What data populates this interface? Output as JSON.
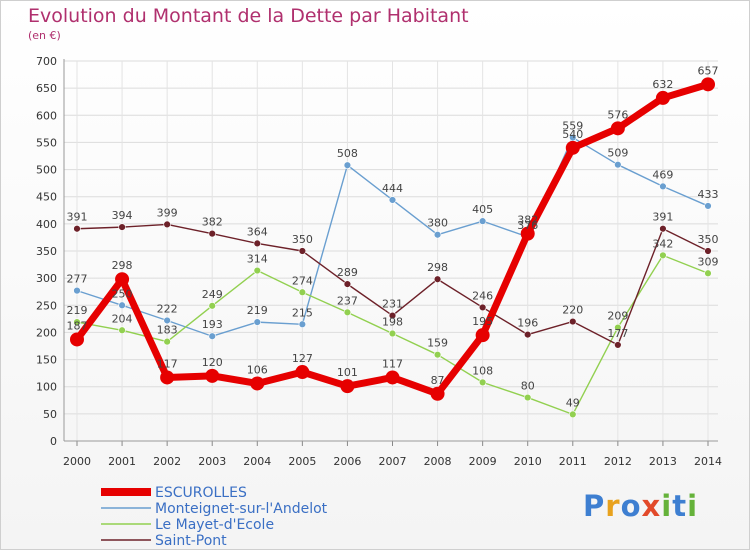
{
  "header": {
    "title": "Evolution du Montant de la Dette par Habitant",
    "subtitle": "(en €)"
  },
  "logo": {
    "letters": [
      "P",
      "r",
      "o",
      "x",
      "i",
      "t",
      "i"
    ],
    "colors": [
      "#3e7fd1",
      "#e8a21e",
      "#3e7fd1",
      "#e24a2a",
      "#65b23a",
      "#3e7fd1",
      "#65b23a"
    ]
  },
  "chart_data": {
    "type": "line",
    "title": "Evolution du Montant de la Dette par Habitant",
    "ylabel": "(en €)",
    "xlabel": "",
    "ylim": [
      0,
      700
    ],
    "yticks": [
      0,
      50,
      100,
      150,
      200,
      250,
      300,
      350,
      400,
      450,
      500,
      550,
      600,
      650,
      700
    ],
    "x": [
      "2000",
      "2001",
      "2002",
      "2003",
      "2004",
      "2005",
      "2006",
      "2007",
      "2008",
      "2009",
      "2010",
      "2011",
      "2012",
      "2013",
      "2014"
    ],
    "grid": true,
    "legend_position": "bottom-left",
    "series": [
      {
        "name": "ESCUROLLES",
        "color": "#e60000",
        "values": [
          187,
          298,
          117,
          120,
          106,
          127,
          101,
          117,
          87,
          195,
          382,
          540,
          576,
          632,
          657
        ]
      },
      {
        "name": "Monteignet-sur-l'Andelot",
        "color": "#6a9fd0",
        "values": [
          277,
          250,
          222,
          193,
          219,
          215,
          508,
          444,
          380,
          405,
          376,
          559,
          509,
          469,
          433
        ]
      },
      {
        "name": "Le Mayet-d'Ecole",
        "color": "#92d050",
        "values": [
          219,
          204,
          183,
          249,
          314,
          274,
          237,
          198,
          159,
          108,
          80,
          49,
          209,
          342,
          309
        ]
      },
      {
        "name": "Saint-Pont",
        "color": "#6d2129",
        "values": [
          391,
          394,
          399,
          382,
          364,
          350,
          289,
          231,
          298,
          246,
          196,
          220,
          177,
          391,
          350
        ]
      }
    ]
  }
}
